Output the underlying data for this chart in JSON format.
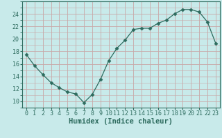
{
  "x": [
    0,
    1,
    2,
    3,
    4,
    5,
    6,
    7,
    8,
    9,
    10,
    11,
    12,
    13,
    14,
    15,
    16,
    17,
    18,
    19,
    20,
    21,
    22,
    23
  ],
  "y": [
    17.5,
    15.7,
    14.3,
    13.0,
    12.2,
    11.5,
    11.2,
    9.8,
    11.1,
    13.5,
    16.5,
    18.5,
    19.8,
    21.5,
    21.7,
    21.7,
    22.5,
    23.0,
    24.0,
    24.7,
    24.7,
    24.3,
    22.7,
    19.3
  ],
  "line_color": "#2d6b5e",
  "marker": "D",
  "marker_size": 2.5,
  "bg_color": "#c8eaea",
  "grid_color": "#c8a8a8",
  "xlabel": "Humidex (Indice chaleur)",
  "ylim": [
    9,
    26
  ],
  "xlim": [
    -0.5,
    23.5
  ],
  "yticks": [
    10,
    12,
    14,
    16,
    18,
    20,
    22,
    24
  ],
  "xtick_labels": [
    "0",
    "1",
    "2",
    "3",
    "4",
    "5",
    "6",
    "7",
    "8",
    "9",
    "10",
    "11",
    "12",
    "13",
    "14",
    "15",
    "16",
    "17",
    "18",
    "19",
    "20",
    "21",
    "22",
    "23"
  ],
  "label_fontsize": 7.5,
  "tick_fontsize": 6.0
}
